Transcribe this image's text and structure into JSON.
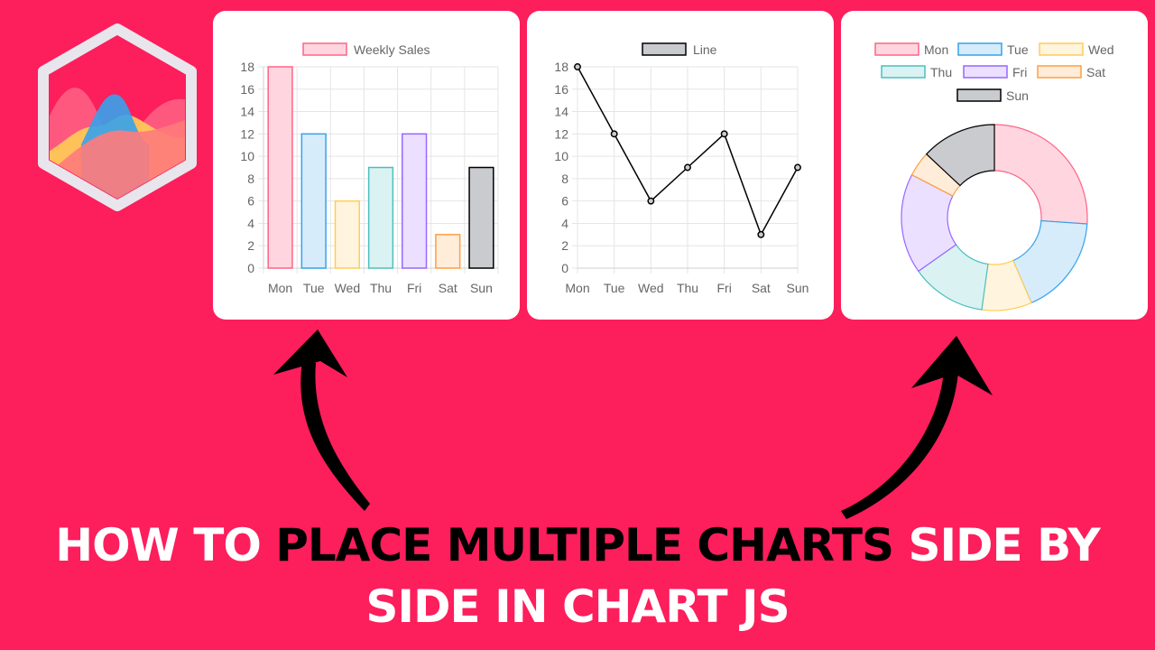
{
  "headline": {
    "part1": "HOW TO ",
    "part2": "PLACE MULTIPLE CHARTS",
    "part3": " SIDE BY",
    "line2": "SIDE IN CHART JS"
  },
  "logo": {
    "icon": "chartjs-logo-icon",
    "colors": {
      "frame": "#e8e6ec",
      "pink": "#ff6384",
      "blue": "#36a2eb",
      "yellow": "#ffcd56"
    }
  },
  "arrows": {
    "icon": "curved-arrow-icon",
    "color": "#000000"
  },
  "chart_data": [
    {
      "type": "bar",
      "categories": [
        "Mon",
        "Tue",
        "Wed",
        "Thu",
        "Fri",
        "Sat",
        "Sun"
      ],
      "series": [
        {
          "name": "Weekly Sales",
          "values": [
            18,
            12,
            6,
            9,
            12,
            3,
            9
          ]
        }
      ],
      "ylim": [
        0,
        18
      ],
      "yticks": [
        0,
        2,
        4,
        6,
        8,
        10,
        12,
        14,
        16,
        18
      ],
      "grid": true,
      "legend_position": "top",
      "colors": {
        "fill": [
          "#ffd6e0",
          "#d7ecfb",
          "#fff4dd",
          "#dbf2f2",
          "#ebe0ff",
          "#ffecd9",
          "#c9cbcf"
        ],
        "border": [
          "#ff6384",
          "#36a2eb",
          "#ffcd56",
          "#4bc0c0",
          "#9966ff",
          "#ff9f40",
          "#000000"
        ]
      }
    },
    {
      "type": "line",
      "categories": [
        "Mon",
        "Tue",
        "Wed",
        "Thu",
        "Fri",
        "Sat",
        "Sun"
      ],
      "series": [
        {
          "name": "Line",
          "values": [
            18,
            12,
            6,
            9,
            12,
            3,
            9
          ]
        }
      ],
      "ylim": [
        0,
        18
      ],
      "yticks": [
        0,
        2,
        4,
        6,
        8,
        10,
        12,
        14,
        16,
        18
      ],
      "grid": true,
      "legend_position": "top",
      "colors": {
        "line": "#000000",
        "legend_fill": "#c9cbcf"
      }
    },
    {
      "type": "pie",
      "categories": [
        "Mon",
        "Tue",
        "Wed",
        "Thu",
        "Fri",
        "Sat",
        "Sun"
      ],
      "values": [
        18,
        12,
        6,
        9,
        12,
        3,
        9
      ],
      "legend_position": "top",
      "colors": {
        "fill": [
          "#ffd6e0",
          "#d7ecfb",
          "#fff4dd",
          "#dbf2f2",
          "#ebe0ff",
          "#ffecd9",
          "#c9cbcf"
        ],
        "border": [
          "#ff6384",
          "#36a2eb",
          "#ffcd56",
          "#4bc0c0",
          "#9966ff",
          "#ff9f40",
          "#000000"
        ]
      }
    }
  ]
}
